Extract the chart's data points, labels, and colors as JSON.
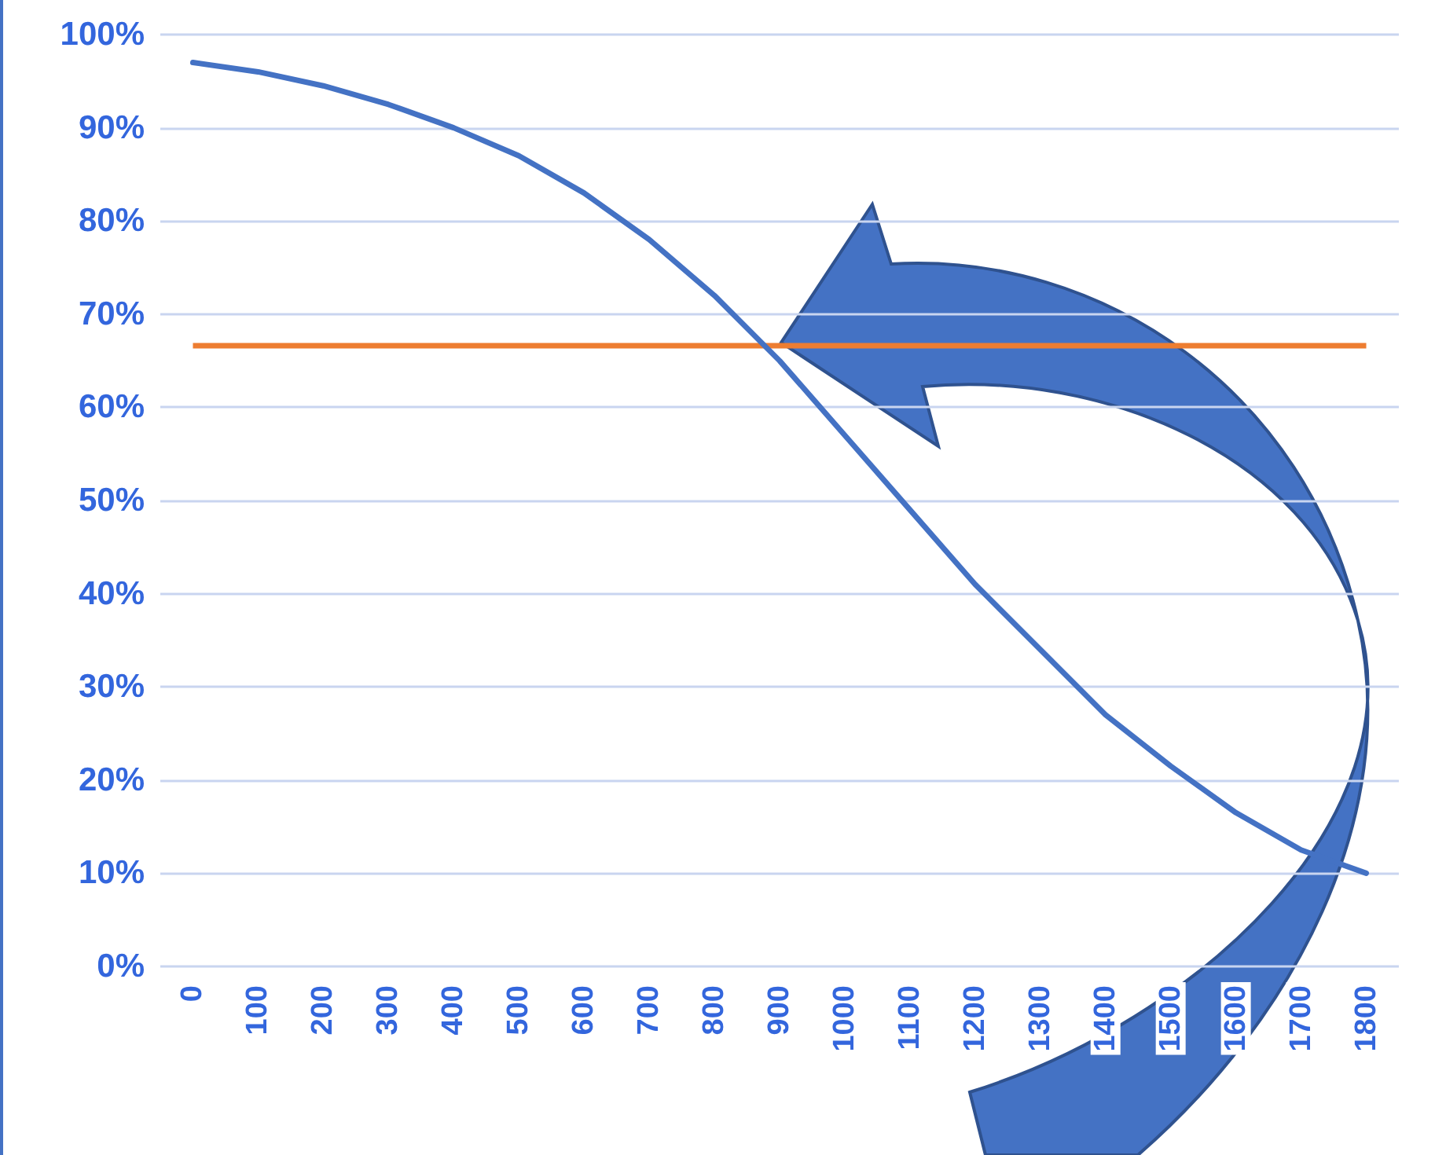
{
  "chart_data": {
    "type": "line",
    "categories": [
      "0",
      "100",
      "200",
      "300",
      "400",
      "500",
      "600",
      "700",
      "800",
      "900",
      "1000",
      "1100",
      "1200",
      "1300",
      "1400",
      "1500",
      "1600",
      "1700",
      "1800"
    ],
    "series": [
      {
        "color": "#4472c4",
        "values": [
          97,
          96,
          94.5,
          92.5,
          90,
          87,
          83,
          78,
          72,
          65,
          57,
          49,
          41,
          34,
          27,
          21.5,
          16.5,
          12.5,
          10
        ]
      }
    ],
    "ylim": [
      0,
      100
    ],
    "yticks": [
      {
        "value": 0,
        "label": "0%"
      },
      {
        "value": 10,
        "label": "10%"
      },
      {
        "value": 20,
        "label": "20%"
      },
      {
        "value": 30,
        "label": "30%"
      },
      {
        "value": 40,
        "label": "40%"
      },
      {
        "value": 50,
        "label": "50%"
      },
      {
        "value": 60,
        "label": "60%"
      },
      {
        "value": 70,
        "label": "70%"
      },
      {
        "value": 80,
        "label": "80%"
      },
      {
        "value": 90,
        "label": "90%"
      },
      {
        "value": 100,
        "label": "100%"
      }
    ],
    "ref_lines": [
      {
        "axis": "y",
        "value": 66.7,
        "color": "#ed7d31"
      }
    ],
    "grid": "y",
    "marker": "none",
    "line_style": "solid"
  }
}
